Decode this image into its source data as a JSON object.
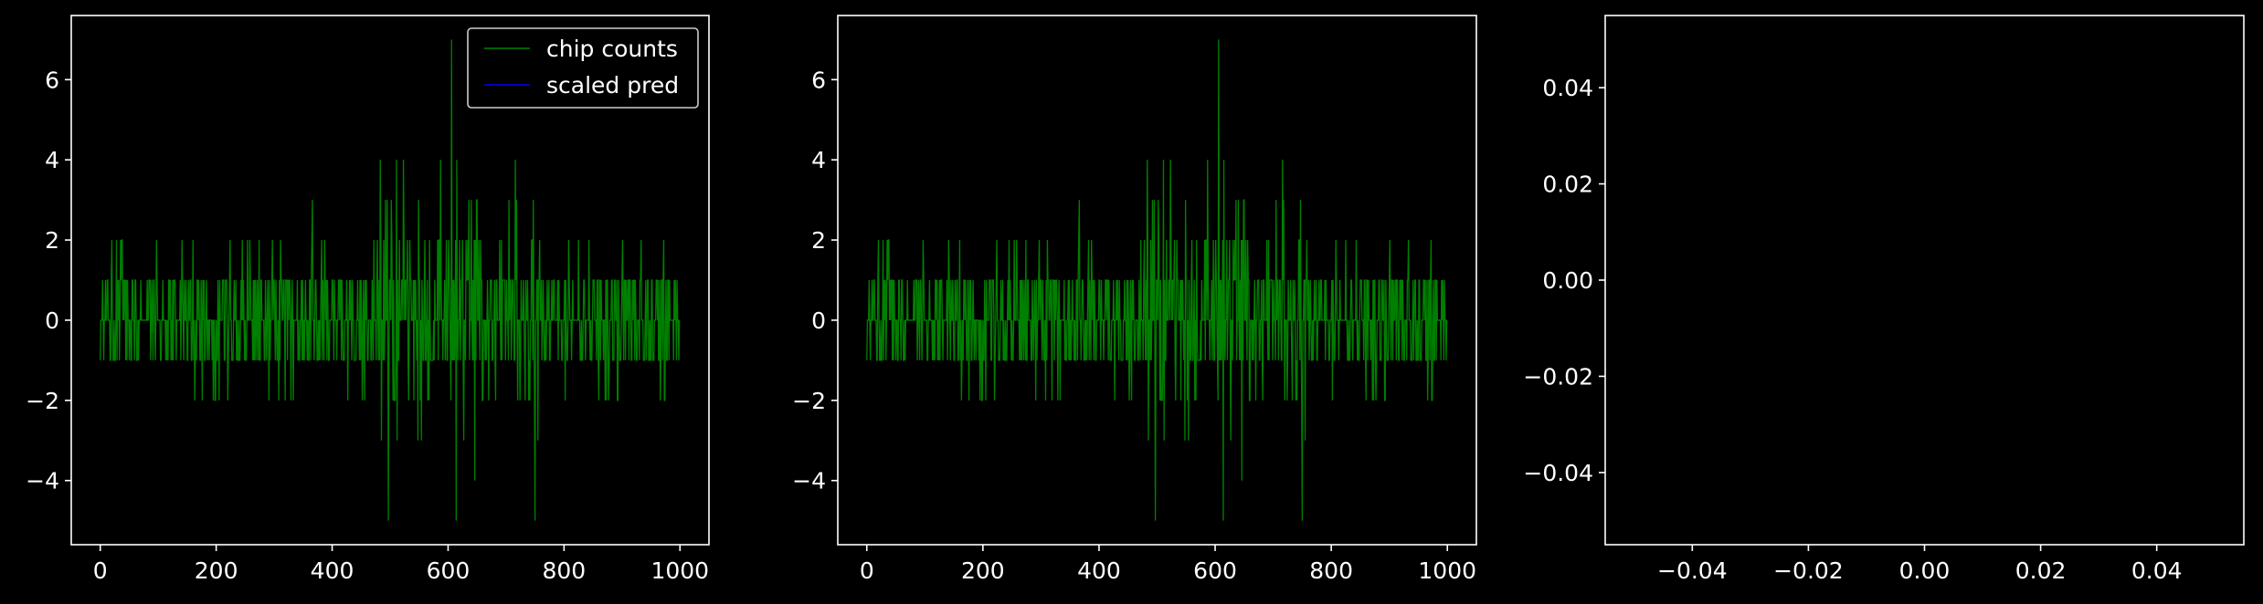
{
  "colors": {
    "background": "#000000",
    "chip_counts": "#008000",
    "scaled_pred": "#0000ff",
    "axes": "#ffffff"
  },
  "chart_data": [
    {
      "type": "line",
      "grid": false,
      "legend": {
        "placement": "top-right",
        "entries": [
          "chip counts",
          "scaled pred"
        ]
      },
      "xlim": [
        -50,
        1050
      ],
      "ylim": [
        -5.6,
        7.6
      ],
      "xticks": [
        0,
        200,
        400,
        600,
        800,
        1000
      ],
      "xtick_labels": [
        "0",
        "200",
        "400",
        "600",
        "800",
        "1000"
      ],
      "yticks": [
        -4,
        -2,
        0,
        2,
        4,
        6
      ],
      "ytick_labels": [
        "−4",
        "−2",
        "0",
        "2",
        "4",
        "6"
      ],
      "series": [
        {
          "name": "chip counts",
          "color": "#008000",
          "x_range": [
            0,
            999
          ],
          "y_range": [
            -5,
            7
          ]
        },
        {
          "name": "scaled pred",
          "color": "#0000ff",
          "x_range": [],
          "y_range": []
        }
      ]
    },
    {
      "type": "line",
      "grid": false,
      "xlim": [
        -50,
        1050
      ],
      "ylim": [
        -5.6,
        7.6
      ],
      "xticks": [
        0,
        200,
        400,
        600,
        800,
        1000
      ],
      "xtick_labels": [
        "0",
        "200",
        "400",
        "600",
        "800",
        "1000"
      ],
      "yticks": [
        -4,
        -2,
        0,
        2,
        4,
        6
      ],
      "ytick_labels": [
        "−4",
        "−2",
        "0",
        "2",
        "4",
        "6"
      ],
      "series": [
        {
          "color": "#008000",
          "x_range": [
            0,
            999
          ],
          "y_range": [
            -5,
            7
          ]
        }
      ]
    },
    {
      "type": "line",
      "grid": false,
      "xlim": [
        -0.055,
        0.055
      ],
      "ylim": [
        -0.055,
        0.055
      ],
      "xticks": [
        -0.04,
        -0.02,
        0.0,
        0.02,
        0.04
      ],
      "xtick_labels": [
        "−0.04",
        "−0.02",
        "0.00",
        "0.02",
        "0.04"
      ],
      "yticks": [
        -0.04,
        -0.02,
        0.0,
        0.02,
        0.04
      ],
      "ytick_labels": [
        "−0.04",
        "−0.02",
        "0.00",
        "0.02",
        "0.04"
      ],
      "series": []
    }
  ]
}
